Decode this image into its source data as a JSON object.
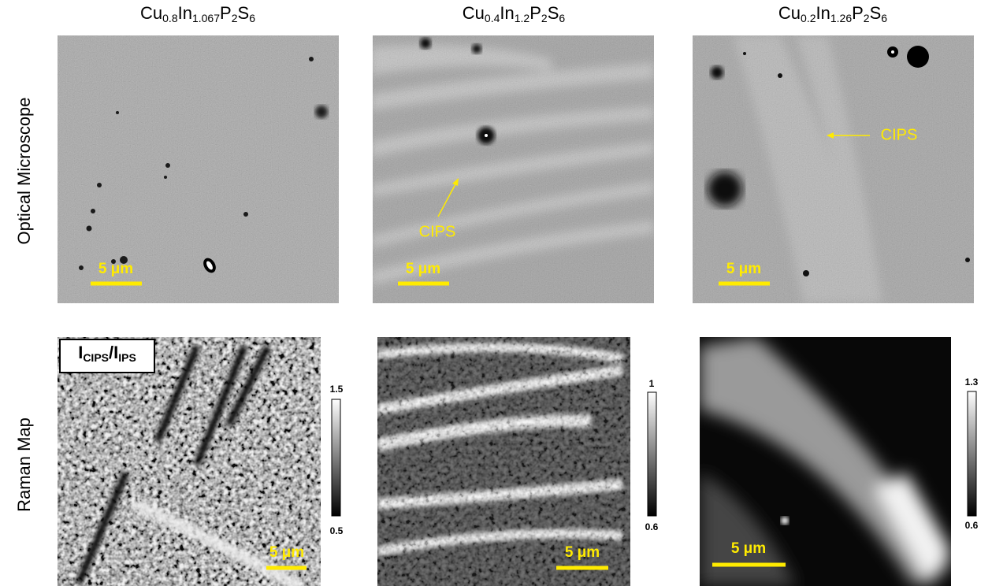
{
  "columns": [
    {
      "title": [
        "Cu",
        "0.8",
        "In",
        "1.067",
        "P",
        "2",
        "S",
        "6"
      ]
    },
    {
      "title": [
        "Cu",
        "0.4",
        "In",
        "1.2",
        "P",
        "2",
        "S",
        "6"
      ]
    },
    {
      "title": [
        "Cu",
        "0.2",
        "In",
        "1.26",
        "P",
        "2",
        "S",
        "6"
      ]
    }
  ],
  "rows": {
    "optical": "Optical Microscope",
    "raman": "Raman Map"
  },
  "scale_bar": "5 μm",
  "annotation": "CIPS",
  "raman_label": [
    "I",
    "CIPS",
    "/I",
    "IPS"
  ],
  "colorbars": [
    {
      "max": "1.5",
      "min": "0.5"
    },
    {
      "max": "1",
      "min": "0.6"
    },
    {
      "max": "1.3",
      "min": "0.6"
    }
  ]
}
